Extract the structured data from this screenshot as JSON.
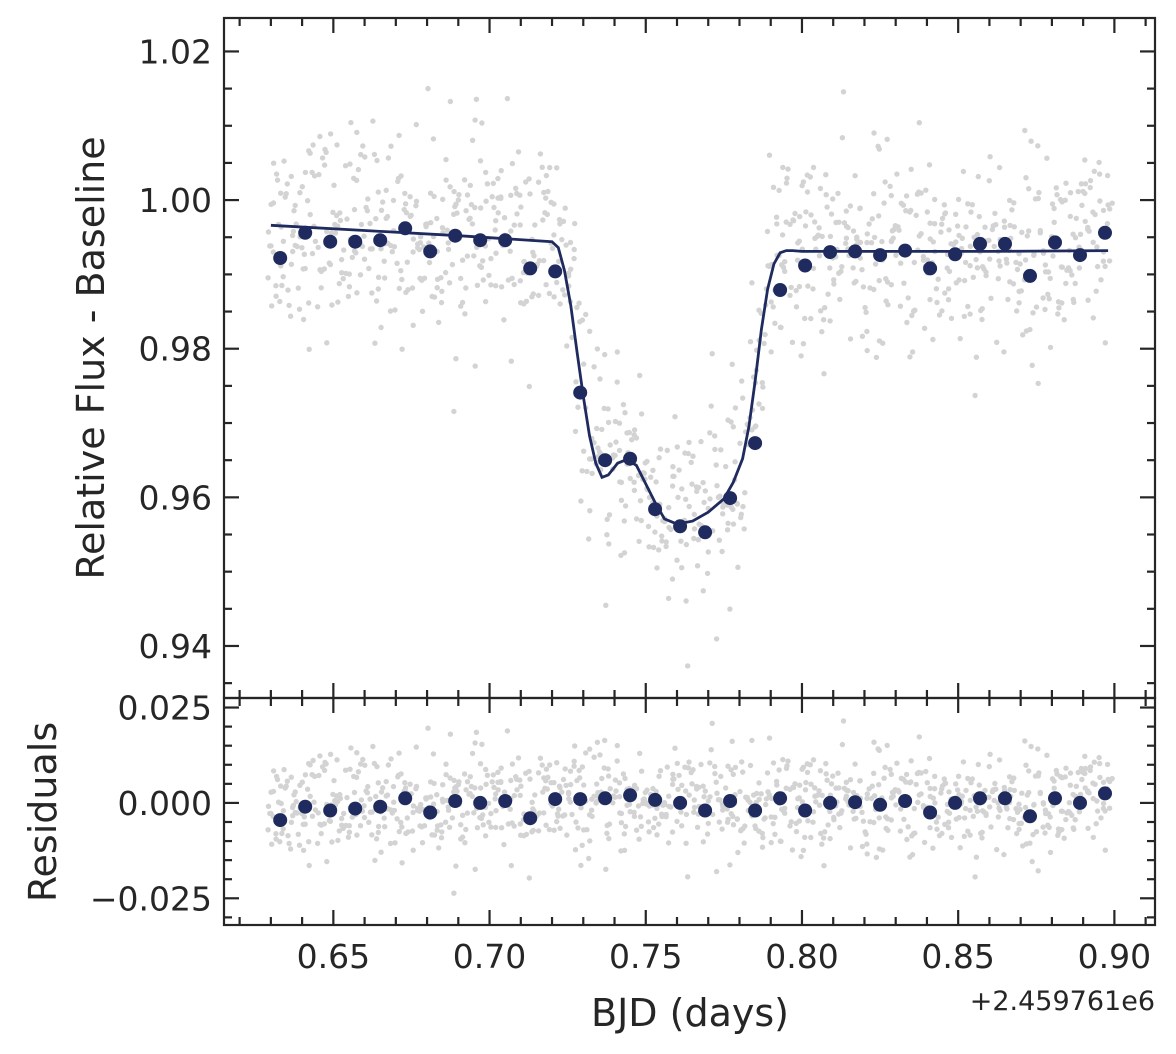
{
  "chart_data": {
    "type": "scatter",
    "x_offset_label": "+2.459761e6",
    "colors": {
      "raw_points": "#d3d3d3",
      "binned_points": "#1f2b5e",
      "model_line": "#1f2b5e",
      "axes": "#262626"
    },
    "panels": [
      {
        "name": "light-curve",
        "ylabel": "Relative Flux - Baseline",
        "xlim": [
          0.615,
          0.913
        ],
        "ylim": [
          0.933,
          1.0245
        ],
        "y_ticks": [
          0.94,
          0.96,
          0.98,
          1.0,
          1.02
        ],
        "y_tick_labels": [
          "0.94",
          "0.96",
          "0.98",
          "1.00",
          "1.02"
        ],
        "grid": false,
        "series": [
          {
            "role": "binned",
            "x": [
              0.633,
              0.641,
              0.649,
              0.657,
              0.665,
              0.673,
              0.681,
              0.689,
              0.697,
              0.705,
              0.713,
              0.721,
              0.729,
              0.737,
              0.745,
              0.753,
              0.761,
              0.769,
              0.777,
              0.785,
              0.793,
              0.801,
              0.809,
              0.817,
              0.825,
              0.833,
              0.841,
              0.849,
              0.857,
              0.865,
              0.873,
              0.881,
              0.889,
              0.897
            ],
            "y": [
              0.9922,
              0.9956,
              0.9944,
              0.9944,
              0.9946,
              0.9962,
              0.9931,
              0.9952,
              0.9946,
              0.9946,
              0.9908,
              0.9904,
              0.9741,
              0.965,
              0.9652,
              0.9584,
              0.9561,
              0.9553,
              0.9599,
              0.9673,
              0.9879,
              0.9912,
              0.993,
              0.9931,
              0.9926,
              0.9932,
              0.9908,
              0.9927,
              0.9941,
              0.9941,
              0.9898,
              0.9943,
              0.9926,
              0.9956
            ]
          },
          {
            "role": "model",
            "x": [
              0.63,
              0.66,
              0.69,
              0.72,
              0.722,
              0.724,
              0.726,
              0.728,
              0.73,
              0.732,
              0.734,
              0.736,
              0.738,
              0.741,
              0.744,
              0.747,
              0.75,
              0.753,
              0.756,
              0.76,
              0.765,
              0.77,
              0.775,
              0.778,
              0.781,
              0.783,
              0.785,
              0.787,
              0.789,
              0.791,
              0.793,
              0.795,
              0.797,
              0.8,
              0.83,
              0.86,
              0.898
            ],
            "y": [
              0.9966,
              0.9959,
              0.9952,
              0.9944,
              0.9936,
              0.9905,
              0.9858,
              0.9796,
              0.9736,
              0.9683,
              0.9646,
              0.9627,
              0.963,
              0.9646,
              0.9651,
              0.9643,
              0.9618,
              0.9593,
              0.9571,
              0.9564,
              0.9568,
              0.958,
              0.9598,
              0.962,
              0.9652,
              0.9695,
              0.9756,
              0.9826,
              0.988,
              0.9914,
              0.9929,
              0.9932,
              0.9932,
              0.9931,
              0.9931,
              0.9931,
              0.9932
            ]
          }
        ]
      },
      {
        "name": "residuals",
        "ylabel": "Residuals",
        "xlabel": "BJD (days)",
        "xlim": [
          0.615,
          0.913
        ],
        "ylim": [
          -0.032,
          0.0275
        ],
        "x_ticks": [
          0.65,
          0.7,
          0.75,
          0.8,
          0.85,
          0.9
        ],
        "x_tick_labels": [
          "0.65",
          "0.70",
          "0.75",
          "0.80",
          "0.85",
          "0.90"
        ],
        "y_ticks": [
          -0.025,
          0.0,
          0.025
        ],
        "y_tick_labels": [
          "−0.025",
          "0.000",
          "0.025"
        ],
        "grid": false,
        "series": [
          {
            "role": "binned",
            "x": [
              0.633,
              0.641,
              0.649,
              0.657,
              0.665,
              0.673,
              0.681,
              0.689,
              0.697,
              0.705,
              0.713,
              0.721,
              0.729,
              0.737,
              0.745,
              0.753,
              0.761,
              0.769,
              0.777,
              0.785,
              0.793,
              0.801,
              0.809,
              0.817,
              0.825,
              0.833,
              0.841,
              0.849,
              0.857,
              0.865,
              0.873,
              0.881,
              0.889,
              0.897
            ],
            "y": [
              -0.0045,
              -0.001,
              -0.002,
              -0.0015,
              -0.001,
              0.0012,
              -0.0025,
              0.0005,
              0.0,
              0.0005,
              -0.004,
              0.001,
              0.001,
              0.0012,
              0.002,
              0.0008,
              0.0,
              -0.002,
              0.0005,
              -0.002,
              0.0012,
              -0.002,
              0.0,
              0.0002,
              -0.0005,
              0.0005,
              -0.0025,
              0.0,
              0.0012,
              0.0012,
              -0.0035,
              0.0012,
              0.0,
              0.0025
            ]
          }
        ]
      }
    ]
  }
}
